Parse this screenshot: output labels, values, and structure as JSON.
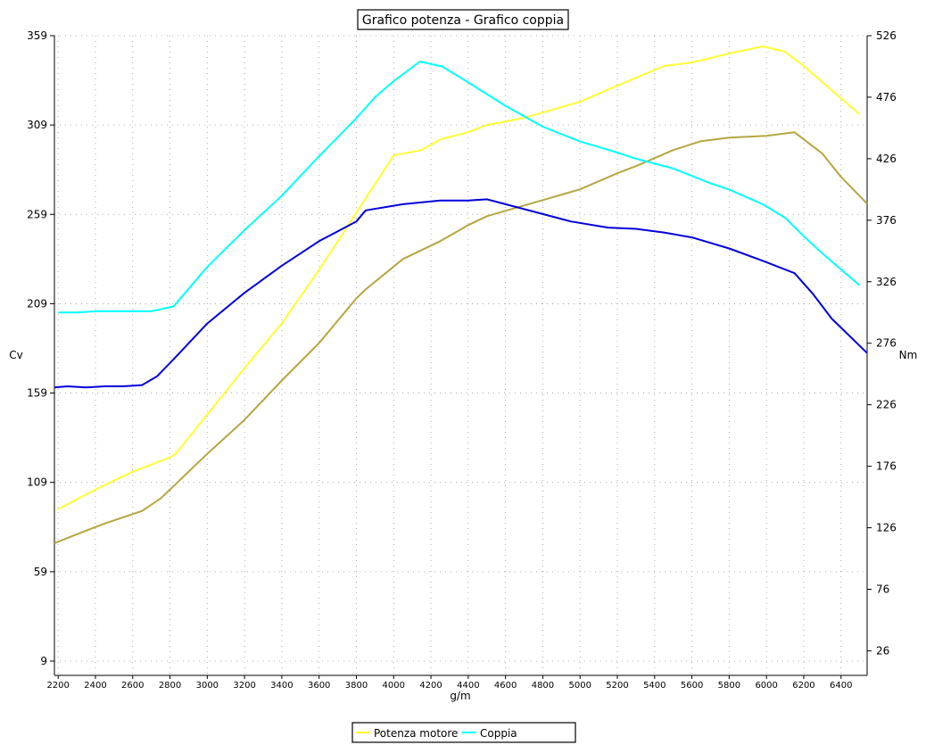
{
  "chart_data": {
    "type": "line",
    "title": "Grafico potenza - Grafico coppia",
    "xlabel": "g/m",
    "ylabel_left": "Cv",
    "ylabel_right": "Nm",
    "xlim": [
      2180,
      6540
    ],
    "ylim_left": [
      1,
      359
    ],
    "ylim_right": [
      6,
      526
    ],
    "x_ticks": [
      2200,
      2400,
      2600,
      2800,
      3000,
      3200,
      3400,
      3600,
      3800,
      4000,
      4200,
      4400,
      4600,
      4800,
      5000,
      5200,
      5400,
      5600,
      5800,
      6000,
      6200,
      6400
    ],
    "y_ticks_left": [
      9,
      59,
      109,
      159,
      209,
      259,
      309,
      359
    ],
    "y_ticks_right": [
      26,
      76,
      126,
      176,
      226,
      276,
      326,
      376,
      426,
      476,
      526
    ],
    "grid": true,
    "legend": {
      "placement": "bottom-center",
      "entries": [
        "Potenza motore",
        "Coppia"
      ]
    },
    "series": [
      {
        "name": "Potenza motore",
        "axis": "left",
        "color": "#ffff33",
        "x": [
          2200,
          2400,
          2600,
          2800,
          2830,
          3000,
          3200,
          3400,
          3600,
          3800,
          4000,
          4150,
          4250,
          4400,
          4500,
          4700,
          4800,
          5000,
          5200,
          5450,
          5600,
          5800,
          5980,
          6100,
          6200,
          6300,
          6500
        ],
        "y": [
          94,
          105,
          115,
          123,
          125,
          147,
          173,
          198,
          228,
          260,
          292,
          295,
          301,
          305,
          309,
          313,
          316,
          322,
          331,
          342,
          344,
          349,
          353,
          350,
          342,
          333,
          315
        ]
      },
      {
        "name": "",
        "axis": "left",
        "color": "#b5a642",
        "x": [
          2180,
          2350,
          2450,
          2650,
          2750,
          2850,
          3000,
          3200,
          3400,
          3600,
          3800,
          3850,
          4050,
          4250,
          4400,
          4500,
          4800,
          5000,
          5200,
          5300,
          5500,
          5650,
          5800,
          6000,
          6150,
          6300,
          6400,
          6540
        ],
        "y": [
          75,
          82,
          86,
          93,
          100,
          110,
          125,
          144,
          166,
          187,
          212,
          217,
          234,
          244,
          253,
          258,
          267,
          273,
          282,
          286,
          295,
          300,
          302,
          303,
          305,
          293,
          280,
          265
        ]
      },
      {
        "name": "Coppia",
        "axis": "right",
        "color": "#00ffff",
        "x": [
          2200,
          2300,
          2400,
          2500,
          2600,
          2700,
          2820,
          3000,
          3200,
          3400,
          3600,
          3800,
          3900,
          4000,
          4140,
          4260,
          4400,
          4600,
          4800,
          5000,
          5200,
          5300,
          5500,
          5700,
          5800,
          5980,
          6100,
          6200,
          6300,
          6500
        ],
        "y": [
          301,
          301,
          302,
          302,
          302,
          302,
          306,
          338,
          368,
          396,
          428,
          459,
          476,
          489,
          505,
          501,
          488,
          469,
          452,
          440,
          431,
          426,
          418,
          406,
          401,
          389,
          378,
          363,
          349,
          323
        ]
      },
      {
        "name": "",
        "axis": "right",
        "color": "#0000dd",
        "x": [
          2180,
          2250,
          2350,
          2450,
          2550,
          2650,
          2730,
          2820,
          3000,
          3200,
          3400,
          3600,
          3800,
          3850,
          4050,
          4250,
          4400,
          4500,
          4600,
          4800,
          4950,
          5150,
          5300,
          5450,
          5600,
          5800,
          5980,
          6150,
          6250,
          6350,
          6540
        ],
        "y": [
          240,
          241,
          240,
          241,
          241,
          242,
          249,
          263,
          292,
          317,
          339,
          359,
          375,
          384,
          389,
          392,
          392,
          393,
          389,
          381,
          375,
          370,
          369,
          366,
          362,
          353,
          343,
          333,
          316,
          296,
          268
        ]
      }
    ]
  }
}
